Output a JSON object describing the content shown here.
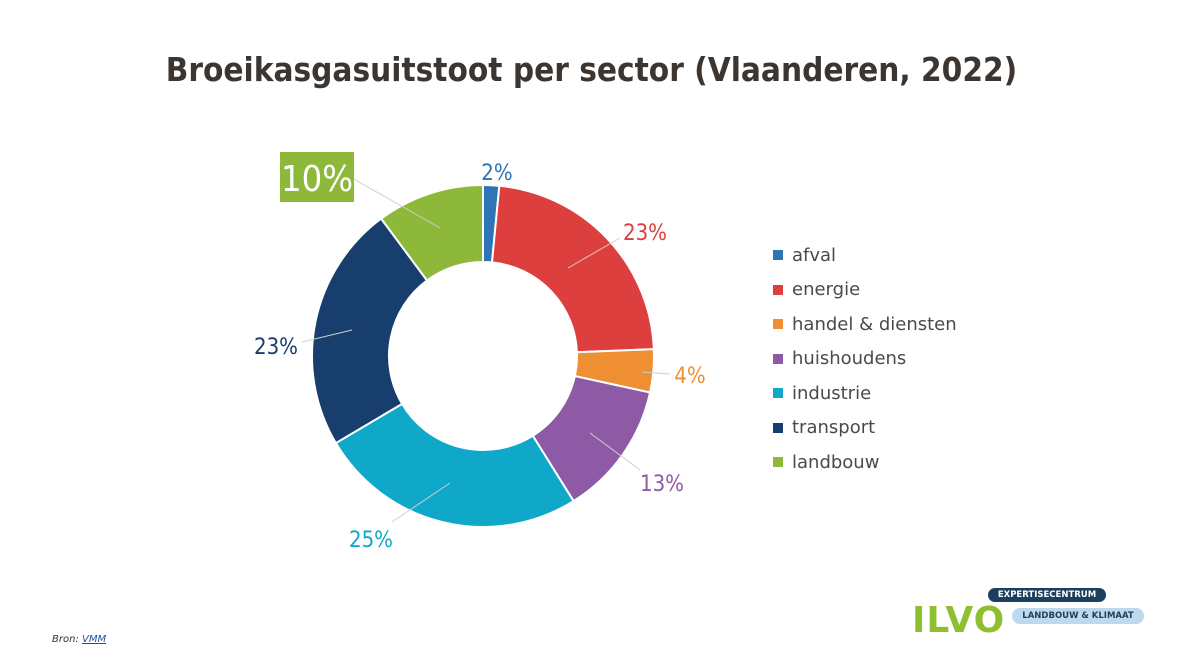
{
  "chart_data": {
    "type": "pie",
    "title": "Broeikasgasuitstoot per sector (Vlaanderen, 2022)",
    "donut": true,
    "categories": [
      "afval",
      "energie",
      "handel & diensten",
      "huishoudens",
      "industrie",
      "transport",
      "landbouw"
    ],
    "values": [
      1.5,
      22.5,
      4,
      12.5,
      25,
      23,
      10
    ],
    "labels": [
      "2%",
      "23%",
      "4%",
      "13%",
      "25%",
      "23%",
      "10%"
    ],
    "colors": [
      "#2e75b6",
      "#dc3f3d",
      "#ee8f33",
      "#8f5aa5",
      "#0fa8c8",
      "#173e6d",
      "#8db83a"
    ],
    "legend_position": "right"
  },
  "source": {
    "prefix": "Bron:",
    "link": "VMM"
  },
  "logo": {
    "name": "ILVO",
    "badge_top": "EXPERTISECENTRUM",
    "badge_bottom": "LANDBOUW & KLIMAAT"
  }
}
